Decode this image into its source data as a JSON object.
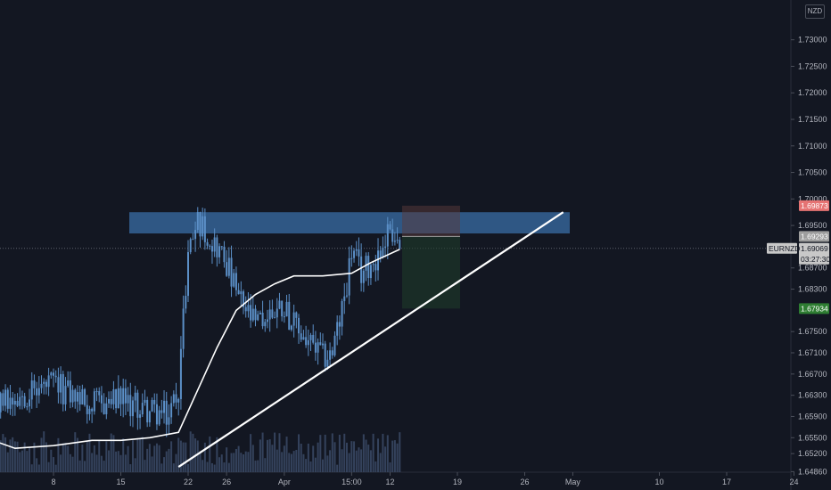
{
  "currency": "NZD",
  "symbol_label": "EURNZD",
  "countdown": "03:27:30",
  "price_scale": {
    "min": 1.6485,
    "max": 1.7375,
    "ticks": [
      "1.73000",
      "1.72500",
      "1.72000",
      "1.71500",
      "1.71000",
      "1.70500",
      "1.70000",
      "1.69500",
      "1.68700",
      "1.68300",
      "1.67500",
      "1.67100",
      "1.66700",
      "1.66300",
      "1.65900",
      "1.65500",
      "1.65200",
      "1.64860"
    ]
  },
  "time_labels": [
    "8",
    "15",
    "22",
    "26",
    "Apr",
    "15:00",
    "12",
    "19",
    "26",
    "May",
    "10",
    "17",
    "24"
  ],
  "price_badges": [
    {
      "value": "1.69873",
      "color": "#e57373"
    },
    {
      "value": "1.69293",
      "color": "#9e9e9e"
    },
    {
      "value": "1.69069",
      "color": "#c8c8c8"
    },
    {
      "value": "1.67934",
      "color": "#2e7d32"
    }
  ],
  "colors": {
    "background": "#131722",
    "candle": "#5b8fc7",
    "zone": "#3a6ea5",
    "stop_zone": "#5a3a3a",
    "target_zone": "#1e3b2a",
    "ma": "#ffffff",
    "trendline": "#ffffff",
    "volume": "#3b4a66"
  },
  "chart_data": {
    "type": "candlestick",
    "symbol": "EURNZD",
    "quote_currency": "NZD",
    "last_price": 1.69069,
    "resistance_zone": {
      "low": 1.6935,
      "high": 1.6975,
      "from": "Mar 15",
      "to": "Apr 30"
    },
    "trendline": {
      "from": {
        "date": "Mar 21",
        "price": 1.6495
      },
      "to": {
        "date": "Apr 30",
        "price": 1.6975
      }
    },
    "position": {
      "entry": 1.69293,
      "stop": 1.69873,
      "target": 1.67934,
      "side": "short"
    },
    "price_path": [
      {
        "date": "Mar 1",
        "price": 1.66
      },
      {
        "date": "Mar 4",
        "price": 1.663
      },
      {
        "date": "Mar 8",
        "price": 1.665
      },
      {
        "date": "Mar 12",
        "price": 1.661
      },
      {
        "date": "Mar 15",
        "price": 1.662
      },
      {
        "date": "Mar 18",
        "price": 1.66
      },
      {
        "date": "Mar 20",
        "price": 1.659
      },
      {
        "date": "Mar 21",
        "price": 1.665
      },
      {
        "date": "Mar 22",
        "price": 1.69
      },
      {
        "date": "Mar 23",
        "price": 1.696
      },
      {
        "date": "Mar 25",
        "price": 1.691
      },
      {
        "date": "Mar 26",
        "price": 1.688
      },
      {
        "date": "Mar 27",
        "price": 1.682
      },
      {
        "date": "Mar 29",
        "price": 1.676
      },
      {
        "date": "Mar 31",
        "price": 1.679
      },
      {
        "date": "Apr 1",
        "price": 1.68
      },
      {
        "date": "Apr 2",
        "price": 1.676
      },
      {
        "date": "Apr 4",
        "price": 1.672
      },
      {
        "date": "Apr 5",
        "price": 1.67
      },
      {
        "date": "Apr 6",
        "price": 1.671
      },
      {
        "date": "Apr 7",
        "price": 1.679
      },
      {
        "date": "Apr 8",
        "price": 1.69
      },
      {
        "date": "Apr 9",
        "price": 1.686
      },
      {
        "date": "Apr 10",
        "price": 1.688
      },
      {
        "date": "Apr 11",
        "price": 1.69
      },
      {
        "date": "Apr 12",
        "price": 1.695
      },
      {
        "date": "Apr 13",
        "price": 1.6907
      }
    ],
    "moving_average": [
      {
        "date": "Mar 1",
        "price": 1.654
      },
      {
        "date": "Mar 4",
        "price": 1.653
      },
      {
        "date": "Mar 8",
        "price": 1.6535
      },
      {
        "date": "Mar 12",
        "price": 1.6545
      },
      {
        "date": "Mar 15",
        "price": 1.6545
      },
      {
        "date": "Mar 18",
        "price": 1.655
      },
      {
        "date": "Mar 21",
        "price": 1.656
      },
      {
        "date": "Mar 23",
        "price": 1.664
      },
      {
        "date": "Mar 25",
        "price": 1.672
      },
      {
        "date": "Mar 27",
        "price": 1.679
      },
      {
        "date": "Mar 29",
        "price": 1.682
      },
      {
        "date": "Mar 31",
        "price": 1.684
      },
      {
        "date": "Apr 2",
        "price": 1.6855
      },
      {
        "date": "Apr 5",
        "price": 1.6855
      },
      {
        "date": "Apr 8",
        "price": 1.686
      },
      {
        "date": "Apr 10",
        "price": 1.688
      },
      {
        "date": "Apr 13",
        "price": 1.6905
      }
    ],
    "price_range": [
      1.6485,
      1.7375
    ]
  }
}
